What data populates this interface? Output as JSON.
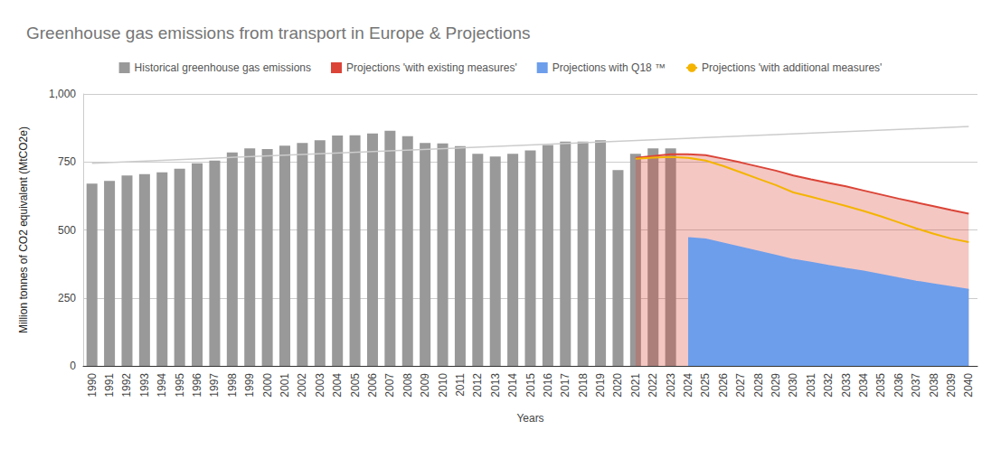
{
  "chart_data": {
    "type": "bar",
    "title": "Greenhouse gas emissions from transport in Europe & Projections",
    "x_label": "Years",
    "y_label": "Million tonnes of CO2 equivalent (MtCO2e)",
    "categories": [
      "1990",
      "1991",
      "1992",
      "1993",
      "1994",
      "1995",
      "1996",
      "1997",
      "1998",
      "1999",
      "2000",
      "2001",
      "2002",
      "2003",
      "2004",
      "2005",
      "2006",
      "2007",
      "2008",
      "2009",
      "2010",
      "2011",
      "2012",
      "2013",
      "2014",
      "2015",
      "2016",
      "2017",
      "2018",
      "2019",
      "2020",
      "2021",
      "2022",
      "2023",
      "2024",
      "2025",
      "2026",
      "2027",
      "2028",
      "2029",
      "2030",
      "2031",
      "2032",
      "2033",
      "2034",
      "2035",
      "2036",
      "2037",
      "2038",
      "2039",
      "2040"
    ],
    "ylim": [
      0,
      1000
    ],
    "yticks": [
      0,
      250,
      500,
      750,
      1000
    ],
    "grid": true,
    "legend": "top",
    "series": [
      {
        "name": "Historical greenhouse gas emissions",
        "type": "bar",
        "color": "#999999",
        "values": [
          670,
          680,
          700,
          705,
          712,
          725,
          745,
          755,
          785,
          800,
          797,
          810,
          820,
          830,
          847,
          848,
          855,
          865,
          845,
          820,
          818,
          808,
          780,
          770,
          780,
          792,
          812,
          825,
          825,
          830,
          720,
          780,
          800,
          800,
          null,
          null,
          null,
          null,
          null,
          null,
          null,
          null,
          null,
          null,
          null,
          null,
          null,
          null,
          null,
          null,
          null
        ]
      },
      {
        "name": "Projections 'with existing measures'",
        "type": "area",
        "color": "#db4437",
        "values": [
          null,
          null,
          null,
          null,
          null,
          null,
          null,
          null,
          null,
          null,
          null,
          null,
          null,
          null,
          null,
          null,
          null,
          null,
          null,
          null,
          null,
          null,
          null,
          null,
          null,
          null,
          null,
          null,
          null,
          null,
          null,
          765,
          772,
          778,
          778,
          775,
          762,
          748,
          733,
          718,
          700,
          686,
          673,
          660,
          645,
          630,
          615,
          601,
          587,
          573,
          560
        ]
      },
      {
        "name": "Projections with Q18 ™",
        "type": "area",
        "color": "#6d9eeb",
        "values": [
          null,
          null,
          null,
          null,
          null,
          null,
          null,
          null,
          null,
          null,
          null,
          null,
          null,
          null,
          null,
          null,
          null,
          null,
          null,
          null,
          null,
          null,
          null,
          null,
          null,
          null,
          null,
          null,
          null,
          null,
          null,
          null,
          null,
          null,
          470,
          465,
          450,
          435,
          420,
          405,
          390,
          380,
          368,
          357,
          347,
          335,
          322,
          310,
          300,
          290,
          280
        ]
      },
      {
        "name": "Projections 'with additional measures'",
        "type": "line",
        "color": "#f4b400",
        "values": [
          null,
          null,
          null,
          null,
          null,
          null,
          null,
          null,
          null,
          null,
          null,
          null,
          null,
          null,
          null,
          null,
          null,
          null,
          null,
          null,
          null,
          null,
          null,
          null,
          null,
          null,
          null,
          null,
          null,
          null,
          null,
          762,
          766,
          768,
          765,
          755,
          735,
          712,
          688,
          665,
          638,
          622,
          605,
          588,
          570,
          550,
          528,
          506,
          486,
          468,
          455
        ]
      },
      {
        "type": "line",
        "color": "#cccccc",
        "values": [
          745,
          null,
          null,
          null,
          null,
          null,
          null,
          null,
          null,
          null,
          null,
          null,
          null,
          null,
          null,
          null,
          null,
          null,
          null,
          null,
          null,
          null,
          null,
          null,
          null,
          null,
          null,
          null,
          null,
          null,
          null,
          null,
          null,
          null,
          null,
          null,
          null,
          null,
          null,
          null,
          null,
          null,
          null,
          null,
          null,
          null,
          null,
          null,
          null,
          null,
          880
        ]
      }
    ]
  }
}
